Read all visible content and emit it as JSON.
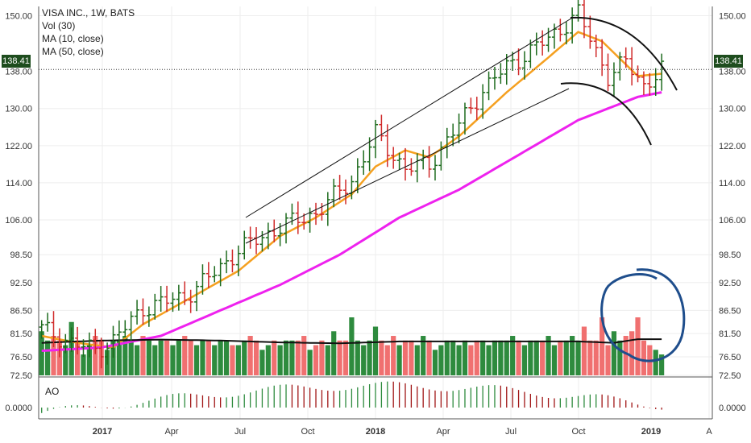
{
  "legend": {
    "symbol": "VISA INC., 1W, BATS",
    "vol": "Vol (30)",
    "ma10": "MA (10, close)",
    "ma50": "MA (50, close)"
  },
  "price_tag": "138.41",
  "ao_label": "AO",
  "colors": {
    "up": "#1d6b1d",
    "down": "#d02a2a",
    "vol_up": "#2e8b3e",
    "vol_down": "#f07070",
    "ma10": "#f5a020",
    "ma50": "#ee22ee",
    "vol_ma": "#111111",
    "annotation": "#1f4e8c",
    "grid": "#eeeeee"
  },
  "chart_data": {
    "type": "line",
    "title": "VISA INC., 1W, BATS",
    "x_ticks": [
      "2017",
      "Apr",
      "Jul",
      "Oct",
      "2018",
      "Apr",
      "Jul",
      "Oct",
      "2019",
      "A"
    ],
    "y_ticks": [
      "150.00",
      "138.00",
      "130.00",
      "122.00",
      "114.00",
      "106.00",
      "98.50",
      "92.50",
      "86.50",
      "81.50",
      "76.50",
      "72.50"
    ],
    "ylim": [
      72.5,
      152
    ],
    "last_price": 138.41,
    "ohlc_anchors_week_close": [
      [
        0,
        82.5
      ],
      [
        6,
        79
      ],
      [
        9,
        78
      ],
      [
        12,
        80
      ],
      [
        17,
        87
      ],
      [
        24,
        89.5
      ],
      [
        28,
        93.5
      ],
      [
        33,
        99.5
      ],
      [
        40,
        104.5
      ],
      [
        46,
        107.5
      ],
      [
        52,
        114.5
      ],
      [
        56,
        124.5
      ],
      [
        61,
        117
      ],
      [
        65,
        118
      ],
      [
        70,
        126.5
      ],
      [
        74,
        134
      ],
      [
        78,
        139
      ],
      [
        85,
        145
      ],
      [
        90,
        150.5
      ],
      [
        92,
        145
      ],
      [
        95,
        137
      ],
      [
        98,
        140
      ],
      [
        101,
        135
      ],
      [
        104,
        138.4
      ]
    ],
    "series": [
      {
        "name": "MA (10, close)",
        "anchors": [
          [
            0,
            81
          ],
          [
            6,
            79.5
          ],
          [
            12,
            78.5
          ],
          [
            17,
            83.5
          ],
          [
            24,
            88.5
          ],
          [
            33,
            95
          ],
          [
            40,
            102.5
          ],
          [
            46,
            106.5
          ],
          [
            52,
            111.5
          ],
          [
            56,
            117.5
          ],
          [
            61,
            121
          ],
          [
            65,
            119.5
          ],
          [
            70,
            124
          ],
          [
            78,
            133.5
          ],
          [
            85,
            141
          ],
          [
            90,
            146.5
          ],
          [
            94,
            144.5
          ],
          [
            100,
            137
          ],
          [
            104,
            137.5
          ]
        ]
      },
      {
        "name": "MA (50, close)",
        "anchors": [
          [
            0,
            77.8
          ],
          [
            10,
            78.5
          ],
          [
            20,
            81
          ],
          [
            30,
            86.5
          ],
          [
            40,
            92
          ],
          [
            50,
            98.5
          ],
          [
            60,
            106.5
          ],
          [
            70,
            112.5
          ],
          [
            80,
            120
          ],
          [
            90,
            127.5
          ],
          [
            100,
            132.5
          ],
          [
            104,
            133.5
          ]
        ]
      },
      {
        "name": "Vol (30)",
        "anchors": [
          [
            0,
            79.5
          ],
          [
            10,
            80
          ],
          [
            20,
            80.2
          ],
          [
            30,
            80
          ],
          [
            40,
            79.6
          ],
          [
            50,
            79.4
          ],
          [
            60,
            79.8
          ],
          [
            70,
            79.8
          ],
          [
            80,
            79.8
          ],
          [
            90,
            79.8
          ],
          [
            96,
            79.5
          ],
          [
            100,
            80.3
          ],
          [
            104,
            80.3
          ]
        ]
      }
    ],
    "volume": [
      82,
      80,
      81,
      80,
      79,
      84,
      80,
      77,
      79,
      81,
      80,
      78,
      80,
      80,
      81,
      80,
      79,
      81,
      80,
      79,
      80,
      80,
      79,
      80,
      81,
      80,
      79,
      80,
      80,
      79,
      80,
      80,
      79,
      79,
      80,
      81,
      80,
      78,
      79,
      80,
      79,
      80,
      80,
      80,
      81,
      78,
      79,
      80,
      79,
      82,
      80,
      80,
      85,
      80,
      79,
      80,
      83,
      80,
      79,
      81,
      79,
      80,
      80,
      79,
      81,
      80,
      78,
      79,
      80,
      80,
      79,
      80,
      79,
      80,
      80,
      79,
      80,
      80,
      80,
      81,
      80,
      79,
      80,
      80,
      80,
      81,
      79,
      80,
      80,
      81,
      80,
      83,
      80,
      80,
      85,
      79,
      82,
      80,
      81,
      82,
      85,
      80,
      79,
      78,
      77
    ],
    "ao_range": [
      -40,
      60
    ],
    "ao_label": "0.0000"
  }
}
